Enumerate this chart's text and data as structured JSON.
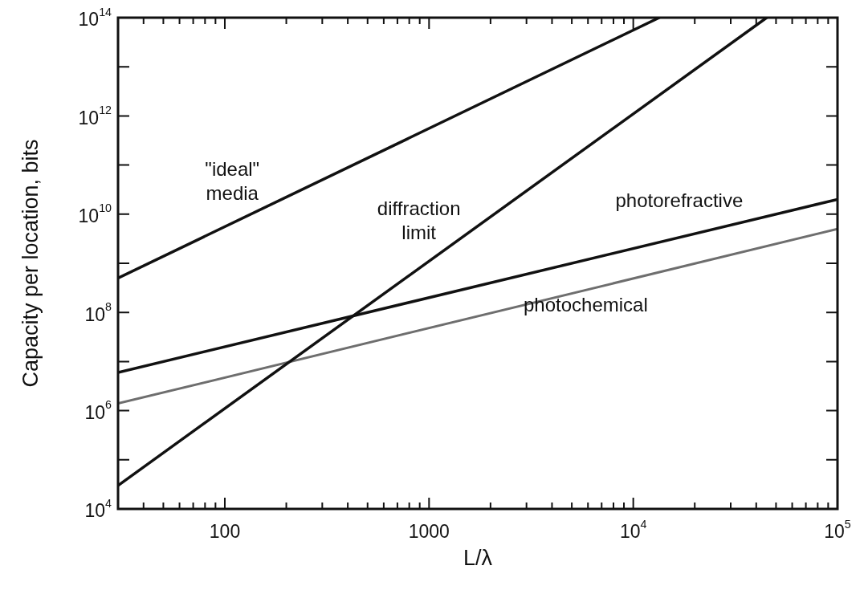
{
  "chart_data": {
    "type": "line",
    "xlabel": "L/λ",
    "ylabel": "Capacity per location, bits",
    "log": "xy",
    "grid": false,
    "legend": false,
    "marker": "none",
    "xlim": [
      30,
      100000
    ],
    "ylim": [
      10000,
      100000000000000
    ],
    "xticks": [
      {
        "value": 40,
        "label": null
      },
      {
        "value": 50,
        "label": null
      },
      {
        "value": 60,
        "label": null
      },
      {
        "value": 70,
        "label": null
      },
      {
        "value": 80,
        "label": null
      },
      {
        "value": 90,
        "label": null
      },
      100,
      {
        "value": 200,
        "label": null
      },
      {
        "value": 300,
        "label": null
      },
      {
        "value": 400,
        "label": null
      },
      {
        "value": 500,
        "label": null
      },
      {
        "value": 600,
        "label": null
      },
      {
        "value": 700,
        "label": null
      },
      {
        "value": 800,
        "label": null
      },
      {
        "value": 900,
        "label": null
      },
      1000,
      {
        "value": 2000,
        "label": null
      },
      {
        "value": 3000,
        "label": null
      },
      {
        "value": 4000,
        "label": null
      },
      {
        "value": 5000,
        "label": null
      },
      {
        "value": 6000,
        "label": null
      },
      {
        "value": 7000,
        "label": null
      },
      {
        "value": 8000,
        "label": null
      },
      {
        "value": 9000,
        "label": null
      },
      {
        "value": 10000,
        "label": "10$^{4}$"
      },
      {
        "value": 20000,
        "label": null
      },
      {
        "value": 30000,
        "label": null
      },
      {
        "value": 40000,
        "label": null
      },
      {
        "value": 50000,
        "label": null
      },
      {
        "value": 60000,
        "label": null
      },
      {
        "value": 70000,
        "label": null
      },
      {
        "value": 80000,
        "label": null
      },
      {
        "value": 90000,
        "label": null
      },
      {
        "value": 100000,
        "label": "10$^{5}$"
      }
    ],
    "yticks": [
      {
        "value": 10000,
        "label": "10$^{4}$"
      },
      {
        "value": 100000,
        "label": null
      },
      {
        "value": 1000000,
        "label": "10$^{6}$"
      },
      {
        "value": 10000000,
        "label": null
      },
      {
        "value": 100000000,
        "label": "10$^{8}$"
      },
      {
        "value": 1000000000,
        "label": null
      },
      {
        "value": 10000000000,
        "label": "10$^{10}$"
      },
      {
        "value": 100000000000,
        "label": null
      },
      {
        "value": 1000000000000,
        "label": "10$^{12}$"
      },
      {
        "value": 10000000000000,
        "label": null
      },
      {
        "value": 100000000000000,
        "label": "10$^{14}$"
      }
    ],
    "series": [
      {
        "name": "\"ideal\"\nmedia",
        "color": "#111111",
        "x": [
          30,
          13400
        ],
        "values": [
          500000000,
          100000000000000
        ]
      },
      {
        "name": "diffraction\nlimit",
        "color": "#111111",
        "x": [
          30,
          45000
        ],
        "values": [
          30000,
          100000000000000
        ]
      },
      {
        "name": "photorefractive",
        "color": "#111111",
        "x": [
          30,
          100000
        ],
        "values": [
          6000000,
          20000000000
        ]
      },
      {
        "name": "photochemical",
        "color": "#6e6e6e",
        "x": [
          30,
          100000
        ],
        "values": [
          1400000,
          5000000000
        ]
      }
    ]
  }
}
